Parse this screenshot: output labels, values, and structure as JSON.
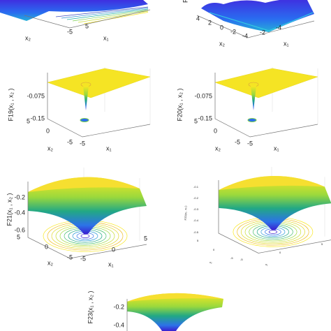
{
  "panels": [
    {
      "x2_label": "x₂",
      "x1_label": "x₁",
      "x2_ticks": [
        "-5"
      ],
      "x1_ticks": [
        "5"
      ]
    },
    {
      "z_label": "F",
      "x2_label": "x₂",
      "x1_label": "x₁",
      "x2_ticks": [
        "4",
        "2",
        "0",
        "-2",
        "-4"
      ],
      "x1_ticks": [
        "-2",
        "-4"
      ]
    },
    {
      "z_label": "F19(x₁ , x₂ )",
      "z_ticks": [
        "-0.075",
        "-0.15"
      ],
      "x2_label": "x₂",
      "x1_label": "x₁",
      "x2_ticks": [
        "5",
        "0",
        "-5"
      ],
      "x1_ticks": [
        "-5"
      ]
    },
    {
      "z_label": "F20(x₁ , x₂ )",
      "z_ticks": [
        "-0.075",
        "-0.15"
      ],
      "x2_label": "x₂",
      "x1_label": "x₁",
      "x2_ticks": [
        "5",
        "0",
        "-5"
      ],
      "x1_ticks": [
        "-5"
      ]
    },
    {
      "z_label": "F21(x₁ , x₂ )",
      "z_ticks": [
        "-0.2",
        "-0.4",
        "-0.6"
      ],
      "x2_label": "x₂",
      "x1_label": "x₁",
      "x2_ticks": [
        "5",
        "0",
        "-5"
      ],
      "x1_ticks": [
        "-5",
        "0",
        "5"
      ]
    },
    {
      "z_label": "F22(x₁ , x₂ )",
      "z_ticks": [
        "-0.1",
        "-0.2",
        "-0.3",
        "-0.4",
        "-0.5"
      ],
      "x2_label": "x₂",
      "x1_label": "x₁",
      "x2_ticks": [
        "5",
        "0",
        "-5"
      ],
      "x1_ticks": [
        "-5",
        "0",
        "5"
      ]
    },
    {
      "z_label": "F23(x₁ , x₂ )",
      "z_ticks": [
        "-0.2",
        "-0.4"
      ]
    }
  ]
}
